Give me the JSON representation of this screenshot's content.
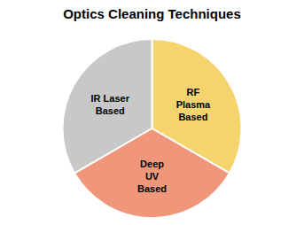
{
  "chart_data": {
    "type": "pie",
    "title": "Optics Cleaning Techniques",
    "categories": [
      "RF\nPlasma\nBased",
      "IR Laser\nBased",
      "Deep\nUV\nBased"
    ],
    "values": [
      33.33,
      33.34,
      33.33
    ],
    "colors": [
      "#F5D46E",
      "#C8C8C8",
      "#F0967A"
    ]
  }
}
